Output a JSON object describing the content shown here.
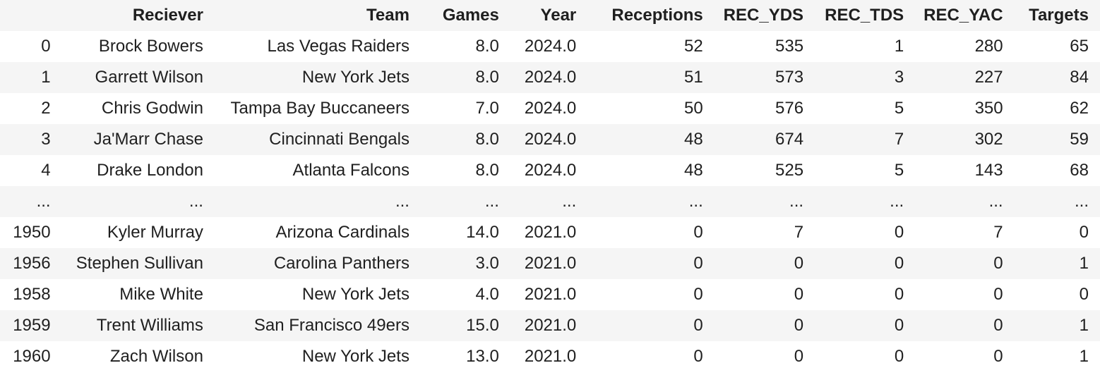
{
  "table": {
    "columns": [
      "",
      "Reciever",
      "Team",
      "Games",
      "Year",
      "Receptions",
      "REC_YDS",
      "REC_TDS",
      "REC_YAC",
      "Targets"
    ],
    "rows": [
      [
        "0",
        "Brock Bowers",
        "Las Vegas Raiders",
        "8.0",
        "2024.0",
        "52",
        "535",
        "1",
        "280",
        "65"
      ],
      [
        "1",
        "Garrett Wilson",
        "New York Jets",
        "8.0",
        "2024.0",
        "51",
        "573",
        "3",
        "227",
        "84"
      ],
      [
        "2",
        "Chris Godwin",
        "Tampa Bay Buccaneers",
        "7.0",
        "2024.0",
        "50",
        "576",
        "5",
        "350",
        "62"
      ],
      [
        "3",
        "Ja'Marr Chase",
        "Cincinnati Bengals",
        "8.0",
        "2024.0",
        "48",
        "674",
        "7",
        "302",
        "59"
      ],
      [
        "4",
        "Drake London",
        "Atlanta Falcons",
        "8.0",
        "2024.0",
        "48",
        "525",
        "5",
        "143",
        "68"
      ],
      [
        "...",
        "...",
        "...",
        "...",
        "...",
        "...",
        "...",
        "...",
        "...",
        "..."
      ],
      [
        "1950",
        "Kyler Murray",
        "Arizona Cardinals",
        "14.0",
        "2021.0",
        "0",
        "7",
        "0",
        "7",
        "0"
      ],
      [
        "1956",
        "Stephen Sullivan",
        "Carolina Panthers",
        "3.0",
        "2021.0",
        "0",
        "0",
        "0",
        "0",
        "1"
      ],
      [
        "1958",
        "Mike White",
        "New York Jets",
        "4.0",
        "2021.0",
        "0",
        "0",
        "0",
        "0",
        "0"
      ],
      [
        "1959",
        "Trent Williams",
        "San Francisco 49ers",
        "15.0",
        "2021.0",
        "0",
        "0",
        "0",
        "0",
        "1"
      ],
      [
        "1960",
        "Zach Wilson",
        "New York Jets",
        "13.0",
        "2021.0",
        "0",
        "0",
        "0",
        "0",
        "1"
      ]
    ]
  }
}
